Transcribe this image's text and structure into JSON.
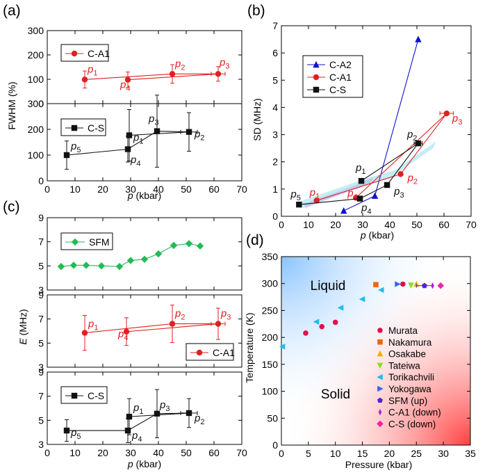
{
  "panel_labels": [
    "(a)",
    "(b)",
    "(c)",
    "(d)"
  ],
  "colors": {
    "red": "#e02020",
    "black": "#111111",
    "blue": "#1010d0",
    "green": "#22bb55"
  },
  "chart_data": [
    {
      "id": "a",
      "type": "scatter",
      "panel_label": "(a)",
      "ylabel": "FWHM (%)",
      "xlabel_italic": "p",
      "xlabel_unit": " (kbar)",
      "xlim": [
        0,
        70
      ],
      "xticks": [
        0,
        10,
        20,
        30,
        40,
        50,
        60,
        70
      ],
      "subplots": [
        {
          "ylim": [
            0,
            300
          ],
          "yticks": [
            0,
            100,
            200,
            300
          ],
          "series": [
            {
              "name": "C-A1",
              "color": "#e02020",
              "marker": "circle",
              "points": [
                {
                  "x": 13.5,
                  "y": 99,
                  "yerr": 35,
                  "label": "p",
                  "sub": "1"
                },
                {
                  "x": 45,
                  "y": 122,
                  "yerr": 38,
                  "label": "p",
                  "sub": "2"
                },
                {
                  "x": 61.5,
                  "y": 122,
                  "yerr": 30,
                  "xerr": 2.5,
                  "label": "p",
                  "sub": "3"
                },
                {
                  "x": 29,
                  "y": 98,
                  "yerr": 32,
                  "label": "p",
                  "sub": "4"
                }
              ],
              "path_order": [
                0,
                1,
                2,
                3
              ]
            }
          ]
        },
        {
          "ylim": [
            0,
            300
          ],
          "yticks": [
            0,
            100,
            200,
            300
          ],
          "series": [
            {
              "name": "C-S",
              "color": "#111111",
              "marker": "square",
              "points": [
                {
                  "x": 29.5,
                  "y": 177,
                  "yerr": 100,
                  "label": "p",
                  "sub": "1"
                },
                {
                  "x": 51,
                  "y": 190,
                  "yerr": 75,
                  "xerr": 3,
                  "label": "p",
                  "sub": "2"
                },
                {
                  "x": 39.5,
                  "y": 193,
                  "yerr": 140,
                  "label": "p",
                  "sub": "3"
                },
                {
                  "x": 29,
                  "y": 123,
                  "yerr": 50,
                  "label": "p",
                  "sub": "4"
                },
                {
                  "x": 7,
                  "y": 100,
                  "yerr": 55,
                  "label": "p",
                  "sub": "5"
                }
              ],
              "path_order": [
                4,
                3,
                2,
                1,
                0
              ]
            }
          ]
        }
      ]
    },
    {
      "id": "b",
      "type": "scatter",
      "panel_label": "(b)",
      "ylabel": "SD (MHz)",
      "xlabel_italic": "p",
      "xlabel_unit": " (kbar)",
      "xlim": [
        0,
        70
      ],
      "ylim": [
        0,
        7
      ],
      "xticks": [
        0,
        10,
        20,
        30,
        40,
        50,
        60,
        70
      ],
      "yticks": [
        0,
        1,
        2,
        3,
        4,
        5,
        6,
        7
      ],
      "series": [
        {
          "name": "C-A2",
          "color": "#1010d0",
          "marker": "triangle",
          "points": [
            {
              "x": 23,
              "y": 0.2
            },
            {
              "x": 34.5,
              "y": 0.75
            },
            {
              "x": 50.5,
              "y": 6.5
            }
          ],
          "path_order": [
            0,
            1,
            2
          ]
        },
        {
          "name": "C-A1",
          "color": "#e02020",
          "marker": "circle",
          "points": [
            {
              "x": 13,
              "y": 0.58,
              "label": "p",
              "sub": "1"
            },
            {
              "x": 44,
              "y": 1.55,
              "label": "p",
              "sub": "2"
            },
            {
              "x": 61,
              "y": 3.78,
              "xerr": 2.5,
              "label": "p",
              "sub": "3"
            },
            {
              "x": 27.5,
              "y": 0.68,
              "label": "p",
              "sub": "4"
            }
          ],
          "path_order": [
            0,
            1,
            2,
            3
          ]
        },
        {
          "name": "C-S",
          "color": "#111111",
          "marker": "square",
          "points": [
            {
              "x": 29.5,
              "y": 1.3,
              "label": "p",
              "sub": "1"
            },
            {
              "x": 50.5,
              "y": 2.68,
              "xerr": 1.5,
              "label": "p",
              "sub": "2"
            },
            {
              "x": 39,
              "y": 1.15,
              "label": "p",
              "sub": "3"
            },
            {
              "x": 29,
              "y": 0.65,
              "label": "p",
              "sub": "4"
            },
            {
              "x": 6.5,
              "y": 0.43,
              "label": "p",
              "sub": "5"
            }
          ],
          "path_order": [
            4,
            3,
            2,
            1,
            0
          ]
        }
      ],
      "legend_position": "top-left"
    },
    {
      "id": "c",
      "type": "line",
      "panel_label": "(c)",
      "ylabel_italic": "E",
      "ylabel_unit": " (MHz)",
      "xlabel_italic": "p",
      "xlabel_unit": " (kbar)",
      "xlim": [
        0,
        70
      ],
      "xticks": [
        0,
        10,
        20,
        30,
        40,
        50,
        60,
        70
      ],
      "subplots": [
        {
          "ylim": [
            3,
            9
          ],
          "yticks": [
            3,
            5,
            7,
            9
          ],
          "series": [
            {
              "name": "SFM",
              "color": "#22bb55",
              "marker": "diamond",
              "points": [
                {
                  "x": 5,
                  "y": 4.95
                },
                {
                  "x": 9.5,
                  "y": 5.05
                },
                {
                  "x": 14,
                  "y": 5.05
                },
                {
                  "x": 19.5,
                  "y": 5.0
                },
                {
                  "x": 26,
                  "y": 4.95
                },
                {
                  "x": 30,
                  "y": 5.45
                },
                {
                  "x": 35,
                  "y": 5.55
                },
                {
                  "x": 40,
                  "y": 6.0
                },
                {
                  "x": 45.5,
                  "y": 6.7
                },
                {
                  "x": 51,
                  "y": 6.85
                },
                {
                  "x": 55,
                  "y": 6.65
                }
              ],
              "path_order": [
                0,
                1,
                2,
                3,
                4,
                5,
                6,
                7,
                8,
                9,
                10
              ]
            }
          ],
          "legend_position": "top-left"
        },
        {
          "ylim": [
            3,
            9
          ],
          "yticks": [
            3,
            5,
            7,
            9
          ],
          "series": [
            {
              "name": "C-A1",
              "color": "#e02020",
              "marker": "circle",
              "points": [
                {
                  "x": 13.5,
                  "y": 5.85,
                  "yerr": 1.45,
                  "label": "p",
                  "sub": "1"
                },
                {
                  "x": 45,
                  "y": 6.6,
                  "yerr": 1.55,
                  "label": "p",
                  "sub": "2"
                },
                {
                  "x": 61.5,
                  "y": 6.6,
                  "yerr": 1.3,
                  "xerr": 2.5,
                  "label": "p",
                  "sub": "3"
                },
                {
                  "x": 28.5,
                  "y": 5.95,
                  "yerr": 1.15,
                  "label": "p",
                  "sub": "4"
                }
              ],
              "path_order": [
                0,
                1,
                2,
                3
              ]
            }
          ],
          "legend_position": "bottom-right"
        },
        {
          "ylim": [
            3,
            9
          ],
          "yticks": [
            3,
            5,
            7,
            9
          ],
          "series": [
            {
              "name": "C-S",
              "color": "#111111",
              "marker": "square",
              "points": [
                {
                  "x": 29.5,
                  "y": 5.3,
                  "yerr": 1.5,
                  "label": "p",
                  "sub": "1"
                },
                {
                  "x": 51,
                  "y": 5.6,
                  "yerr": 1.2,
                  "xerr": 3,
                  "label": "p",
                  "sub": "2"
                },
                {
                  "x": 39.5,
                  "y": 5.55,
                  "yerr": 2.0,
                  "label": "p",
                  "sub": "3"
                },
                {
                  "x": 29,
                  "y": 4.15,
                  "yerr": 1.0,
                  "label": "p",
                  "sub": "4"
                },
                {
                  "x": 7,
                  "y": 4.15,
                  "yerr": 0.9,
                  "label": "p",
                  "sub": "5"
                }
              ],
              "path_order": [
                4,
                3,
                2,
                1,
                0
              ]
            }
          ],
          "legend_position": "top-left"
        }
      ]
    },
    {
      "id": "d",
      "type": "scatter",
      "panel_label": "(d)",
      "xlabel": "Pressure (kbar)",
      "ylabel": "Temperature (K)",
      "xlim": [
        0,
        35
      ],
      "ylim": [
        0,
        350
      ],
      "xticks": [
        0,
        5,
        10,
        15,
        20,
        25,
        30,
        35
      ],
      "yticks": [
        0,
        50,
        100,
        150,
        200,
        250,
        300,
        350
      ],
      "region_labels": [
        "Liquid",
        "Solid"
      ],
      "series": [
        {
          "name": "Murata",
          "color": "#e0104a",
          "marker": "circle",
          "points": [
            {
              "x": 4.5,
              "y": 208
            },
            {
              "x": 7.5,
              "y": 220
            },
            {
              "x": 10,
              "y": 228
            },
            {
              "x": 22.5,
              "y": 299
            }
          ]
        },
        {
          "name": "Nakamura",
          "color": "#ee6611",
          "marker": "square",
          "points": [
            {
              "x": 17.5,
              "y": 298
            }
          ]
        },
        {
          "name": "Osakabe",
          "color": "#f2b000",
          "marker": "triangle-up",
          "points": [
            {
              "x": 25,
              "y": 299
            }
          ]
        },
        {
          "name": "Tateiwa",
          "color": "#88dd22",
          "marker": "triangle-down",
          "points": [
            {
              "x": 24,
              "y": 297
            }
          ]
        },
        {
          "name": "Torikachvili",
          "color": "#22bbee",
          "marker": "triangle-left",
          "points": [
            {
              "x": 0.2,
              "y": 183
            },
            {
              "x": 6.5,
              "y": 229
            },
            {
              "x": 11,
              "y": 255
            },
            {
              "x": 15,
              "y": 271
            },
            {
              "x": 18.5,
              "y": 288
            }
          ]
        },
        {
          "name": "Yokogawa",
          "color": "#3366ee",
          "marker": "triangle-right",
          "points": [
            {
              "x": 21.5,
              "y": 299
            }
          ]
        },
        {
          "name": "SFM (up)",
          "color": "#5522cc",
          "marker": "pentagon",
          "points": [
            {
              "x": 26.5,
              "y": 296,
              "xerr": 1.5
            }
          ]
        },
        {
          "name": "C-A1 (down)",
          "color": "#aa22dd",
          "marker": "diamond-thin",
          "points": [
            {
              "x": 28,
              "y": 296
            }
          ]
        },
        {
          "name": "C-S (down)",
          "color": "#ee22aa",
          "marker": "diamond",
          "points": [
            {
              "x": 29.5,
              "y": 296
            }
          ]
        }
      ],
      "legend_position": "bottom-right"
    }
  ]
}
